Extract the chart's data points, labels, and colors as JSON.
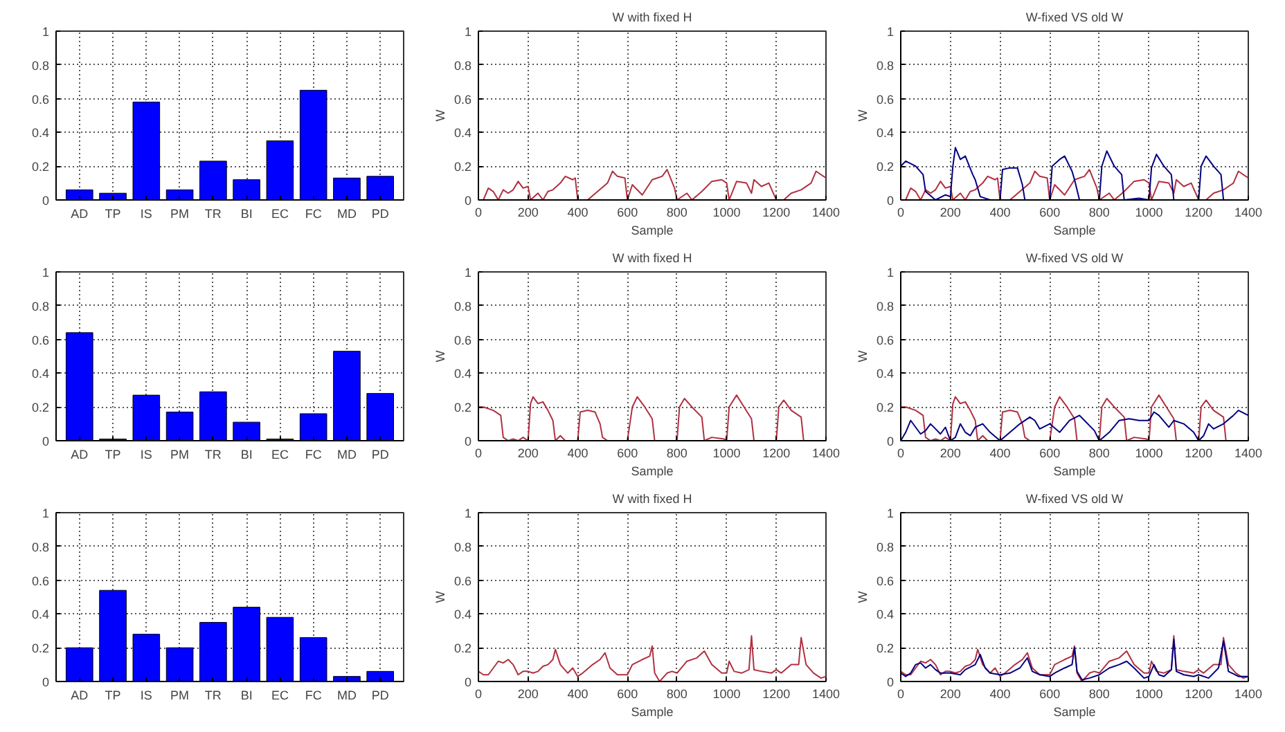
{
  "chart_data": [
    {
      "type": "bar",
      "categories": [
        "AD",
        "TP",
        "IS",
        "PM",
        "TR",
        "BI",
        "EC",
        "FC",
        "MD",
        "PD"
      ],
      "values": [
        0.06,
        0.04,
        0.58,
        0.06,
        0.23,
        0.12,
        0.35,
        0.65,
        0.13,
        0.14
      ],
      "color": "#0000ff",
      "ylim": [
        0,
        1
      ],
      "yticks": [
        0,
        0.2,
        0.4,
        0.6,
        0.8,
        1
      ],
      "grid": true
    },
    {
      "type": "line",
      "title": "W with fixed H",
      "xlabel": "Sample",
      "ylabel": "W",
      "xlim": [
        0,
        1400
      ],
      "xticks": [
        0,
        200,
        400,
        600,
        800,
        1000,
        1200,
        1400
      ],
      "ylim": [
        0,
        1
      ],
      "yticks": [
        0,
        0.2,
        0.4,
        0.6,
        0.8,
        1
      ],
      "grid": true,
      "series": [
        {
          "color": "#b03040",
          "x": [
            0,
            20,
            40,
            60,
            80,
            100,
            120,
            140,
            160,
            180,
            200,
            210,
            240,
            260,
            280,
            300,
            330,
            350,
            380,
            390,
            400,
            440,
            480,
            520,
            540,
            560,
            590,
            600,
            620,
            660,
            700,
            740,
            760,
            790,
            800,
            840,
            860,
            900,
            940,
            980,
            1000,
            1010,
            1040,
            1080,
            1100,
            1110,
            1140,
            1170,
            1200,
            1230,
            1260,
            1300,
            1340,
            1360,
            1400
          ],
          "values": [
            0,
            0,
            0.07,
            0.05,
            0,
            0.06,
            0.04,
            0.06,
            0.11,
            0.07,
            0.08,
            0,
            0.04,
            0,
            0.05,
            0.06,
            0.1,
            0.14,
            0.12,
            0.13,
            0,
            0,
            0.05,
            0.1,
            0.17,
            0.14,
            0.13,
            0,
            0.09,
            0.03,
            0.12,
            0.14,
            0.18,
            0.07,
            0,
            0.04,
            0,
            0.05,
            0.11,
            0.12,
            0.1,
            0,
            0.11,
            0.1,
            0.04,
            0.12,
            0.08,
            0.1,
            0,
            0,
            0.04,
            0.06,
            0.1,
            0.17,
            0.13
          ]
        }
      ]
    },
    {
      "type": "line",
      "title": "W-fixed VS old W",
      "xlabel": "Sample",
      "ylabel": "W",
      "xlim": [
        0,
        1400
      ],
      "xticks": [
        0,
        200,
        400,
        600,
        800,
        1000,
        1200,
        1400
      ],
      "ylim": [
        0,
        1
      ],
      "yticks": [
        0,
        0.2,
        0.4,
        0.6,
        0.8,
        1
      ],
      "grid": true,
      "series": [
        {
          "color": "#b03040",
          "x": [
            0,
            20,
            40,
            60,
            80,
            100,
            120,
            140,
            160,
            180,
            200,
            210,
            240,
            260,
            280,
            300,
            330,
            350,
            380,
            390,
            400,
            440,
            480,
            520,
            540,
            560,
            590,
            600,
            620,
            660,
            700,
            740,
            760,
            790,
            800,
            840,
            860,
            900,
            940,
            980,
            1000,
            1010,
            1040,
            1080,
            1100,
            1110,
            1140,
            1170,
            1200,
            1230,
            1260,
            1300,
            1340,
            1360,
            1400
          ],
          "values": [
            0,
            0,
            0.07,
            0.05,
            0,
            0.06,
            0.04,
            0.06,
            0.11,
            0.07,
            0.08,
            0,
            0.04,
            0,
            0.05,
            0.06,
            0.1,
            0.14,
            0.12,
            0.13,
            0,
            0,
            0.05,
            0.1,
            0.17,
            0.14,
            0.13,
            0,
            0.09,
            0.03,
            0.12,
            0.14,
            0.18,
            0.07,
            0,
            0.04,
            0,
            0.05,
            0.11,
            0.12,
            0.1,
            0,
            0.11,
            0.1,
            0.04,
            0.12,
            0.08,
            0.1,
            0,
            0,
            0.04,
            0.06,
            0.1,
            0.17,
            0.13
          ]
        },
        {
          "color": "#000080",
          "x": [
            0,
            20,
            60,
            90,
            100,
            140,
            180,
            200,
            210,
            220,
            240,
            260,
            290,
            300,
            320,
            360,
            400,
            410,
            440,
            470,
            490,
            500,
            600,
            610,
            640,
            660,
            690,
            700,
            720,
            800,
            810,
            830,
            860,
            890,
            900,
            960,
            1000,
            1010,
            1030,
            1060,
            1090,
            1100,
            1200,
            1210,
            1230,
            1260,
            1290,
            1300,
            1400
          ],
          "values": [
            0.2,
            0.23,
            0.2,
            0.15,
            0.05,
            0,
            0.03,
            0.02,
            0.2,
            0.31,
            0.24,
            0.26,
            0.15,
            0.12,
            0.02,
            0,
            0,
            0.18,
            0.19,
            0.19,
            0.09,
            0,
            0,
            0.2,
            0.24,
            0.26,
            0.17,
            0.12,
            0,
            0,
            0.2,
            0.29,
            0.2,
            0.15,
            0,
            0.01,
            0,
            0.19,
            0.27,
            0.2,
            0.15,
            0,
            0,
            0.2,
            0.26,
            0.2,
            0.15,
            0,
            0
          ]
        }
      ]
    },
    {
      "type": "bar",
      "categories": [
        "AD",
        "TP",
        "IS",
        "PM",
        "TR",
        "BI",
        "EC",
        "FC",
        "MD",
        "PD"
      ],
      "values": [
        0.64,
        0.01,
        0.27,
        0.17,
        0.29,
        0.11,
        0.01,
        0.16,
        0.53,
        0.28
      ],
      "color": "#0000ff",
      "ylim": [
        0,
        1
      ],
      "yticks": [
        0,
        0.2,
        0.4,
        0.6,
        0.8,
        1
      ],
      "grid": true
    },
    {
      "type": "line",
      "title": "W with fixed H",
      "xlabel": "Sample",
      "ylabel": "W",
      "xlim": [
        0,
        1400
      ],
      "xticks": [
        0,
        200,
        400,
        600,
        800,
        1000,
        1200,
        1400
      ],
      "ylim": [
        0,
        1
      ],
      "yticks": [
        0,
        0.2,
        0.4,
        0.6,
        0.8,
        1
      ],
      "grid": true,
      "series": [
        {
          "color": "#b03040",
          "x": [
            0,
            20,
            60,
            90,
            100,
            120,
            140,
            160,
            180,
            200,
            210,
            220,
            240,
            260,
            280,
            300,
            310,
            330,
            350,
            400,
            410,
            440,
            470,
            490,
            500,
            520,
            600,
            620,
            640,
            670,
            700,
            710,
            800,
            810,
            830,
            860,
            900,
            910,
            940,
            990,
            1000,
            1010,
            1040,
            1070,
            1100,
            1110,
            1200,
            1210,
            1230,
            1260,
            1300,
            1310,
            1400
          ],
          "values": [
            0.2,
            0.2,
            0.18,
            0.15,
            0.02,
            0,
            0.01,
            0,
            0.02,
            0,
            0.22,
            0.26,
            0.22,
            0.23,
            0.18,
            0.12,
            0,
            0.03,
            0,
            0,
            0.17,
            0.18,
            0.17,
            0.1,
            0.02,
            0,
            0,
            0.2,
            0.26,
            0.2,
            0.13,
            0,
            0,
            0.2,
            0.25,
            0.2,
            0.14,
            0,
            0.02,
            0.01,
            0,
            0.2,
            0.27,
            0.2,
            0.13,
            0,
            0,
            0.2,
            0.24,
            0.18,
            0.14,
            0,
            0
          ]
        }
      ]
    },
    {
      "type": "line",
      "title": "W-fixed VS old W",
      "xlabel": "Sample",
      "ylabel": "W",
      "xlim": [
        0,
        1400
      ],
      "xticks": [
        0,
        200,
        400,
        600,
        800,
        1000,
        1200,
        1400
      ],
      "ylim": [
        0,
        1
      ],
      "yticks": [
        0,
        0.2,
        0.4,
        0.6,
        0.8,
        1
      ],
      "grid": true,
      "series": [
        {
          "color": "#b03040",
          "x": [
            0,
            20,
            60,
            90,
            100,
            120,
            140,
            160,
            180,
            200,
            210,
            220,
            240,
            260,
            280,
            300,
            310,
            330,
            350,
            400,
            410,
            440,
            470,
            490,
            500,
            520,
            600,
            620,
            640,
            670,
            700,
            710,
            800,
            810,
            830,
            860,
            900,
            910,
            940,
            990,
            1000,
            1010,
            1040,
            1070,
            1100,
            1110,
            1200,
            1210,
            1230,
            1260,
            1300,
            1310,
            1400
          ],
          "values": [
            0.2,
            0.2,
            0.18,
            0.15,
            0.02,
            0,
            0.01,
            0,
            0.02,
            0,
            0.22,
            0.26,
            0.22,
            0.23,
            0.18,
            0.12,
            0,
            0.03,
            0,
            0,
            0.17,
            0.18,
            0.17,
            0.1,
            0.02,
            0,
            0,
            0.2,
            0.26,
            0.2,
            0.13,
            0,
            0,
            0.2,
            0.25,
            0.2,
            0.14,
            0,
            0.02,
            0.01,
            0,
            0.2,
            0.27,
            0.2,
            0.13,
            0,
            0,
            0.2,
            0.24,
            0.18,
            0.14,
            0,
            0
          ]
        },
        {
          "color": "#000080",
          "x": [
            0,
            20,
            40,
            60,
            80,
            100,
            120,
            140,
            160,
            180,
            200,
            220,
            240,
            260,
            280,
            300,
            330,
            360,
            400,
            440,
            480,
            520,
            540,
            560,
            600,
            640,
            680,
            720,
            740,
            780,
            800,
            840,
            880,
            920,
            960,
            1000,
            1020,
            1040,
            1080,
            1100,
            1140,
            1180,
            1200,
            1220,
            1240,
            1260,
            1300,
            1340,
            1360,
            1400
          ],
          "values": [
            0,
            0.05,
            0.12,
            0.08,
            0.04,
            0.06,
            0.1,
            0.07,
            0.04,
            0.08,
            0,
            0.02,
            0.1,
            0.05,
            0.03,
            0.08,
            0.1,
            0.05,
            0,
            0.05,
            0.1,
            0.14,
            0.12,
            0.07,
            0.1,
            0.05,
            0.12,
            0.15,
            0.12,
            0.06,
            0,
            0.05,
            0.12,
            0.13,
            0.12,
            0.12,
            0.17,
            0.15,
            0.08,
            0.12,
            0.1,
            0.05,
            0,
            0.03,
            0.1,
            0.07,
            0.1,
            0.15,
            0.18,
            0.15
          ]
        }
      ]
    },
    {
      "type": "bar",
      "categories": [
        "AD",
        "TP",
        "IS",
        "PM",
        "TR",
        "BI",
        "EC",
        "FC",
        "MD",
        "PD"
      ],
      "values": [
        0.2,
        0.54,
        0.28,
        0.2,
        0.35,
        0.44,
        0.38,
        0.26,
        0.03,
        0.06
      ],
      "color": "#0000ff",
      "ylim": [
        0,
        1
      ],
      "yticks": [
        0,
        0.2,
        0.4,
        0.6,
        0.8,
        1
      ],
      "grid": true
    },
    {
      "type": "line",
      "title": "W with fixed H",
      "xlabel": "Sample",
      "ylabel": "W",
      "xlim": [
        0,
        1400
      ],
      "xticks": [
        0,
        200,
        400,
        600,
        800,
        1000,
        1200,
        1400
      ],
      "ylim": [
        0,
        1
      ],
      "yticks": [
        0,
        0.2,
        0.4,
        0.6,
        0.8,
        1
      ],
      "grid": true,
      "series": [
        {
          "color": "#b03040",
          "x": [
            0,
            20,
            40,
            60,
            80,
            100,
            120,
            140,
            160,
            180,
            200,
            220,
            240,
            260,
            280,
            300,
            310,
            330,
            360,
            380,
            400,
            420,
            460,
            490,
            510,
            530,
            560,
            600,
            620,
            660,
            690,
            700,
            710,
            730,
            760,
            780,
            800,
            840,
            880,
            910,
            940,
            980,
            1000,
            1010,
            1030,
            1060,
            1090,
            1100,
            1110,
            1140,
            1180,
            1200,
            1220,
            1260,
            1290,
            1300,
            1320,
            1350,
            1380,
            1400
          ],
          "values": [
            0.06,
            0.04,
            0.04,
            0.08,
            0.12,
            0.11,
            0.13,
            0.1,
            0.04,
            0.06,
            0.06,
            0.05,
            0.06,
            0.09,
            0.1,
            0.13,
            0.19,
            0.1,
            0.05,
            0.08,
            0.03,
            0.05,
            0.1,
            0.13,
            0.17,
            0.08,
            0.04,
            0.04,
            0.1,
            0.13,
            0.15,
            0.21,
            0.05,
            0,
            0.05,
            0.06,
            0.05,
            0.12,
            0.14,
            0.18,
            0.1,
            0.05,
            0.05,
            0.12,
            0.06,
            0.05,
            0.07,
            0.27,
            0.07,
            0.06,
            0.05,
            0.07,
            0.05,
            0.1,
            0.1,
            0.26,
            0.1,
            0.05,
            0.02,
            0.03
          ]
        }
      ]
    },
    {
      "type": "line",
      "title": "W-fixed VS old W",
      "xlabel": "Sample",
      "ylabel": "W",
      "xlim": [
        0,
        1400
      ],
      "xticks": [
        0,
        200,
        400,
        600,
        800,
        1000,
        1200,
        1400
      ],
      "ylim": [
        0,
        1
      ],
      "yticks": [
        0,
        0.2,
        0.4,
        0.6,
        0.8,
        1
      ],
      "grid": true,
      "series": [
        {
          "color": "#b03040",
          "x": [
            0,
            20,
            40,
            60,
            80,
            100,
            120,
            140,
            160,
            180,
            200,
            220,
            240,
            260,
            280,
            300,
            310,
            330,
            360,
            380,
            400,
            420,
            460,
            490,
            510,
            530,
            560,
            600,
            620,
            660,
            690,
            700,
            710,
            730,
            760,
            780,
            800,
            840,
            880,
            910,
            940,
            980,
            1000,
            1010,
            1030,
            1060,
            1090,
            1100,
            1110,
            1140,
            1180,
            1200,
            1220,
            1260,
            1290,
            1300,
            1320,
            1350,
            1380,
            1400
          ],
          "values": [
            0.06,
            0.04,
            0.04,
            0.08,
            0.12,
            0.11,
            0.13,
            0.1,
            0.04,
            0.06,
            0.06,
            0.05,
            0.06,
            0.09,
            0.1,
            0.13,
            0.19,
            0.1,
            0.05,
            0.08,
            0.03,
            0.05,
            0.1,
            0.13,
            0.17,
            0.08,
            0.04,
            0.04,
            0.1,
            0.13,
            0.15,
            0.21,
            0.05,
            0,
            0.05,
            0.06,
            0.05,
            0.12,
            0.14,
            0.18,
            0.1,
            0.05,
            0.05,
            0.12,
            0.06,
            0.05,
            0.07,
            0.27,
            0.07,
            0.06,
            0.05,
            0.07,
            0.05,
            0.1,
            0.1,
            0.26,
            0.1,
            0.05,
            0.02,
            0.03
          ]
        },
        {
          "color": "#000080",
          "x": [
            0,
            20,
            40,
            60,
            80,
            100,
            120,
            140,
            160,
            200,
            240,
            260,
            300,
            320,
            340,
            360,
            400,
            440,
            480,
            500,
            510,
            530,
            560,
            600,
            620,
            660,
            690,
            700,
            710,
            730,
            760,
            800,
            840,
            880,
            910,
            940,
            980,
            1000,
            1020,
            1040,
            1060,
            1090,
            1100,
            1110,
            1140,
            1180,
            1200,
            1240,
            1280,
            1300,
            1320,
            1360,
            1400
          ],
          "values": [
            0.05,
            0.03,
            0.05,
            0.1,
            0.11,
            0.08,
            0.1,
            0.07,
            0.05,
            0.05,
            0.04,
            0.07,
            0.1,
            0.16,
            0.08,
            0.05,
            0.04,
            0.05,
            0.08,
            0.12,
            0.14,
            0.06,
            0.04,
            0.03,
            0.05,
            0.08,
            0.1,
            0.2,
            0.06,
            0.01,
            0.02,
            0.04,
            0.08,
            0.1,
            0.12,
            0.08,
            0.02,
            0.03,
            0.1,
            0.04,
            0.03,
            0.07,
            0.25,
            0.06,
            0.04,
            0.03,
            0.04,
            0.02,
            0.08,
            0.24,
            0.06,
            0.03,
            0.03
          ]
        }
      ]
    }
  ]
}
